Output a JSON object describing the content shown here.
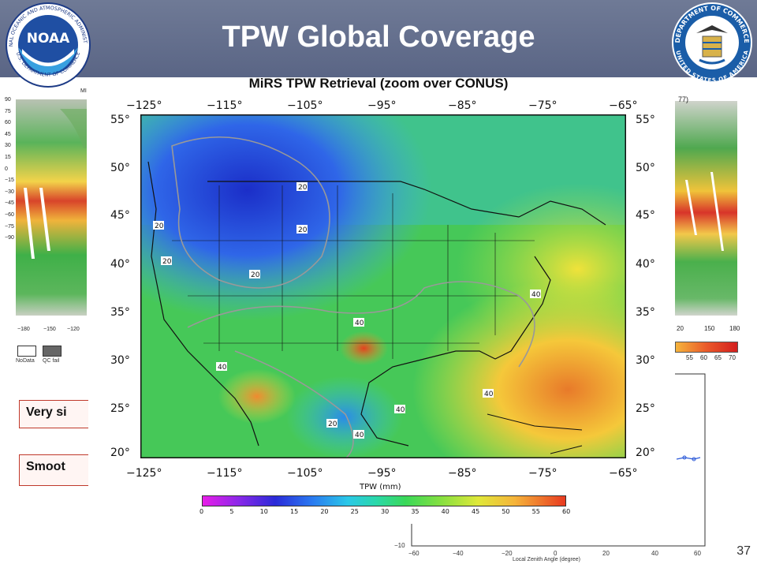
{
  "header": {
    "title": "TPW Global Coverage",
    "background_color": "#66708f"
  },
  "logos": {
    "left": {
      "icon": "noaa-logo",
      "text_top": "NATIONAL OCEANIC AND ATMOSPHERIC ADMINISTRATION",
      "text_bottom": "U.S. DEPARTMENT OF COMMERCE",
      "center_text": "NOAA"
    },
    "right": {
      "icon": "department-of-commerce-seal",
      "text_top": "DEPARTMENT OF COMMERCE",
      "text_bottom": "UNITED STATES OF AMERICA"
    }
  },
  "main_map": {
    "title": "MiRS TPW Retrieval (zoom over CONUS)",
    "lon_ticks": [
      "−125°",
      "−115°",
      "−105°",
      "−95°",
      "−85°",
      "−75°",
      "−65°"
    ],
    "lat_ticks_left": [
      "55°",
      "50°",
      "45°",
      "40°",
      "35°",
      "30°",
      "25°",
      "20°"
    ],
    "lat_ticks_right": [
      "55°",
      "50°",
      "45°",
      "40°",
      "35°",
      "30°",
      "25°",
      "20°"
    ],
    "contour_labels": [
      "20",
      "20",
      "20",
      "20",
      "20",
      "20",
      "40",
      "40",
      "40",
      "40",
      "40",
      "40",
      "20",
      "40"
    ],
    "colorbar_label": "TPW (mm)",
    "colorbar_ticks": [
      "0",
      "5",
      "10",
      "15",
      "20",
      "25",
      "30",
      "35",
      "40",
      "45",
      "50",
      "55",
      "60"
    ]
  },
  "left_map": {
    "label_fragment": "MI",
    "lat_ticks": [
      "90",
      "75",
      "60",
      "45",
      "30",
      "15",
      "0",
      "−15",
      "−30",
      "−45",
      "−60",
      "−75",
      "−90"
    ],
    "lon_ticks": [
      "−180",
      "−150",
      "−120"
    ],
    "legend": [
      {
        "label": "NoData",
        "color": "#ffffff"
      },
      {
        "label": "QC fail",
        "color": "#666666"
      }
    ]
  },
  "right_map": {
    "label_fragment": "77)",
    "lon_ticks": [
      "20",
      "150",
      "180"
    ],
    "colorbar_ticks": [
      "55",
      "60",
      "65",
      "70"
    ]
  },
  "callouts": [
    {
      "text": "Very si"
    },
    {
      "text": "Smoot"
    }
  ],
  "small_plot": {
    "xlabel": "Local Zenith Angle (degree)",
    "x_ticks": [
      "−60",
      "−40",
      "−20",
      "0",
      "20",
      "40",
      "60"
    ],
    "y_tick": "−10"
  },
  "slide_number": "37"
}
